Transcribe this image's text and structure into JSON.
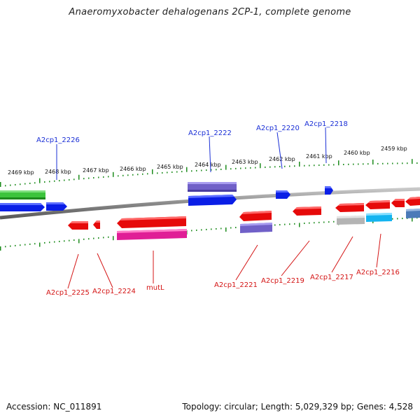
{
  "title": "Anaeromyxobacter dehalogenans 2CP-1, complete genome",
  "footer": {
    "accession": "Accession: NC_011891",
    "summary": "Topology: circular; Length: 5,029,329 bp; Genes: 4,528"
  },
  "colors": {
    "backbone": "#808080",
    "tick": "#1e8c1e",
    "plus_gene": "#0a1ee6",
    "minus_gene": "#e60a0a",
    "plus_label": "#1a2fd6",
    "minus_label": "#d41414",
    "green_feature": "#3cc43c",
    "purple_feature": "#7060c8",
    "magenta_feature": "#e01e96",
    "gray_feature": "#b4b4b4",
    "cyan_feature": "#14b4f0",
    "steel_feature": "#4a7ab8"
  },
  "scale": {
    "unit": "kbp",
    "ticks": [
      "2469 kbp",
      "2468 kbp",
      "2467 kbp",
      "2466 kbp",
      "2465 kbp",
      "2464 kbp",
      "2463 kbp",
      "2462 kbp",
      "2461 kbp",
      "2460 kbp",
      "2459 kbp"
    ]
  },
  "gene_labels": {
    "plus": [
      "A2cp1_2226",
      "A2cp1_2222",
      "A2cp1_2220",
      "A2cp1_2218"
    ],
    "minus": [
      "A2cp1_2225",
      "A2cp1_2224",
      "mutL",
      "A2cp1_2221",
      "A2cp1_2219",
      "A2cp1_2217",
      "A2cp1_2216"
    ]
  }
}
